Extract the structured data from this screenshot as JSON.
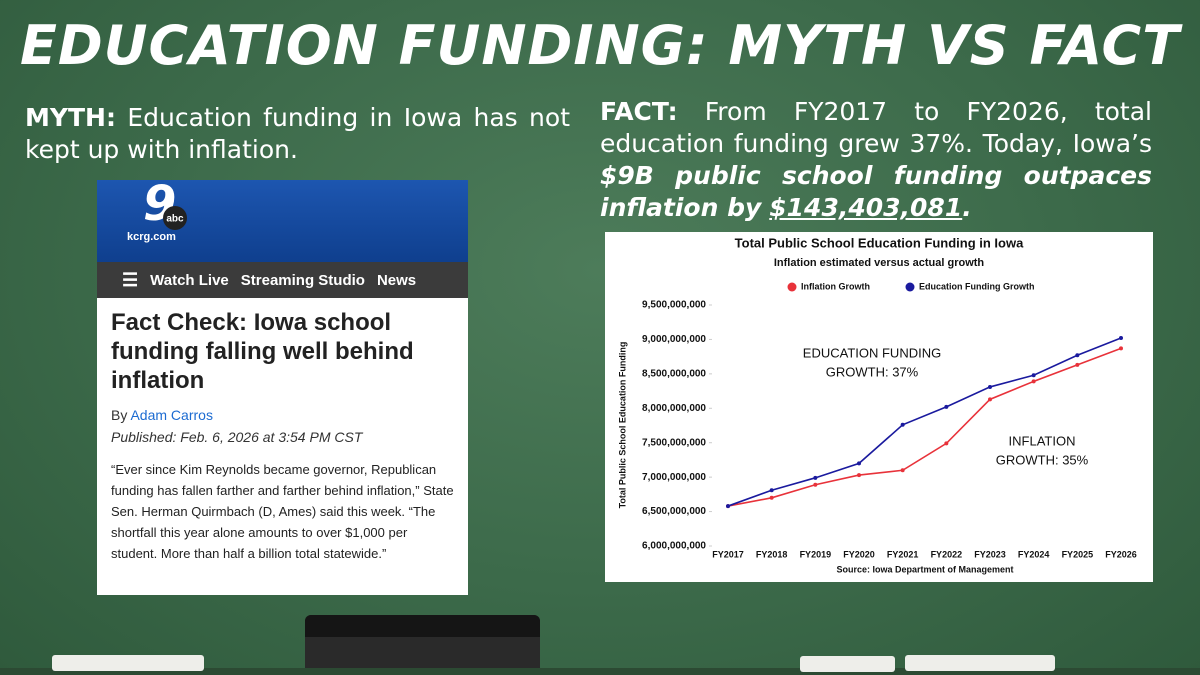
{
  "header": {
    "title": "EDUCATION FUNDING: MYTH VS FACT"
  },
  "myth": {
    "label": "MYTH:",
    "text": "Education funding in Iowa has not kept up with inflation."
  },
  "fact": {
    "label": "FACT:",
    "text": "From FY2017 to FY2026, total education funding grew 37%. Today, Iowa’s",
    "emphasis": "$9B public school funding outpaces inflation by",
    "amount": "$143,403,081",
    "end": "."
  },
  "article": {
    "logo": {
      "number": "9",
      "network": "abc",
      "site": "kcrg.com"
    },
    "nav": [
      "Watch Live",
      "Streaming Studio",
      "News"
    ],
    "headline": "Fact Check: Iowa school funding falling well behind inflation",
    "byline": {
      "prefix": "By",
      "author": "Adam Carros"
    },
    "published": "Published: Feb. 6, 2026 at 3:54 PM CST",
    "quote": "“Ever since Kim Reynolds became governor, Republican funding has fallen farther and farther behind inflation,” State Sen. Herman Quirmbach (D, Ames) said this week. “The shortfall this year alone amounts to over $1,000 per student. More than half a billion total statewide.”"
  },
  "chart_data": {
    "type": "line",
    "title": "Total Public School Education Funding in Iowa",
    "subtitle": "Inflation estimated versus actual growth",
    "y_label": "Total Public School Education Funding",
    "source": "Source: Iowa Department of Management",
    "categories": [
      "FY2017",
      "FY2018",
      "FY2019",
      "FY2020",
      "FY2021",
      "FY2022",
      "FY2023",
      "FY2024",
      "FY2025",
      "FY2026"
    ],
    "series": [
      {
        "name": "Inflation Growth",
        "color": "#e8323a",
        "values": [
          6580000000,
          6700000000,
          6890000000,
          7030000000,
          7100000000,
          7490000000,
          8130000000,
          8390000000,
          8630000000,
          8870000000
        ]
      },
      {
        "name": "Education Funding Growth",
        "color": "#1a1a9e",
        "values": [
          6580000000,
          6810000000,
          6990000000,
          7200000000,
          7760000000,
          8020000000,
          8310000000,
          8480000000,
          8770000000,
          9020000000
        ]
      }
    ],
    "ylim": [
      6000000000,
      9500000000
    ],
    "yticks": [
      {
        "value": 6000000000,
        "label": "6,000,000,000"
      },
      {
        "value": 6500000000,
        "label": "6,500,000,000"
      },
      {
        "value": 7000000000,
        "label": "7,000,000,000"
      },
      {
        "value": 7500000000,
        "label": "7,500,000,000"
      },
      {
        "value": 8000000000,
        "label": "8,000,000,000"
      },
      {
        "value": 8500000000,
        "label": "8,500,000,000"
      },
      {
        "value": 9000000000,
        "label": "9,000,000,000"
      },
      {
        "value": 9500000000,
        "label": "9,500,000,000"
      }
    ],
    "grid": false,
    "legend": "top",
    "annotations": [
      {
        "lines": [
          "EDUCATION FUNDING",
          "GROWTH: 37%"
        ]
      },
      {
        "lines": [
          "INFLATION",
          "GROWTH: 35%"
        ]
      }
    ]
  }
}
